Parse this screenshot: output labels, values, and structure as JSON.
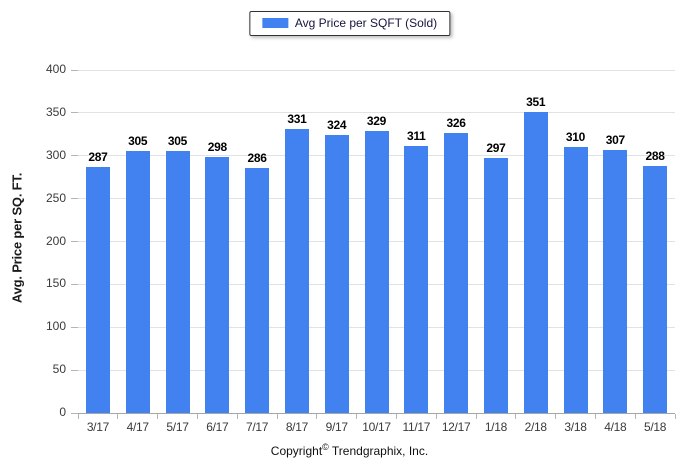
{
  "legend": {
    "label": "Avg Price per SQFT (Sold)"
  },
  "chart_data": {
    "type": "bar",
    "title": "",
    "categories": [
      "3/17",
      "4/17",
      "5/17",
      "6/17",
      "7/17",
      "8/17",
      "9/17",
      "10/17",
      "11/17",
      "12/17",
      "1/18",
      "2/18",
      "3/18",
      "4/18",
      "5/18"
    ],
    "values": [
      287,
      305,
      305,
      298,
      286,
      331,
      324,
      329,
      311,
      326,
      297,
      351,
      310,
      307,
      288
    ],
    "series_name": "Avg Price per SQFT (Sold)",
    "xlabel": "",
    "ylabel": "Avg. Price per SQ. FT.",
    "ylim": [
      0,
      400
    ],
    "yticks": [
      0,
      50,
      100,
      150,
      200,
      250,
      300,
      350,
      400
    ],
    "grid": "horizontal",
    "legend_position": "top-center",
    "bar_color": "#4181F0",
    "gridline_color": "#e2e2e2",
    "axis_line_color": "#a6a6a6"
  },
  "footer": {
    "prefix": "Copyright",
    "symbol": "©",
    "suffix": " Trendgraphix, Inc."
  }
}
